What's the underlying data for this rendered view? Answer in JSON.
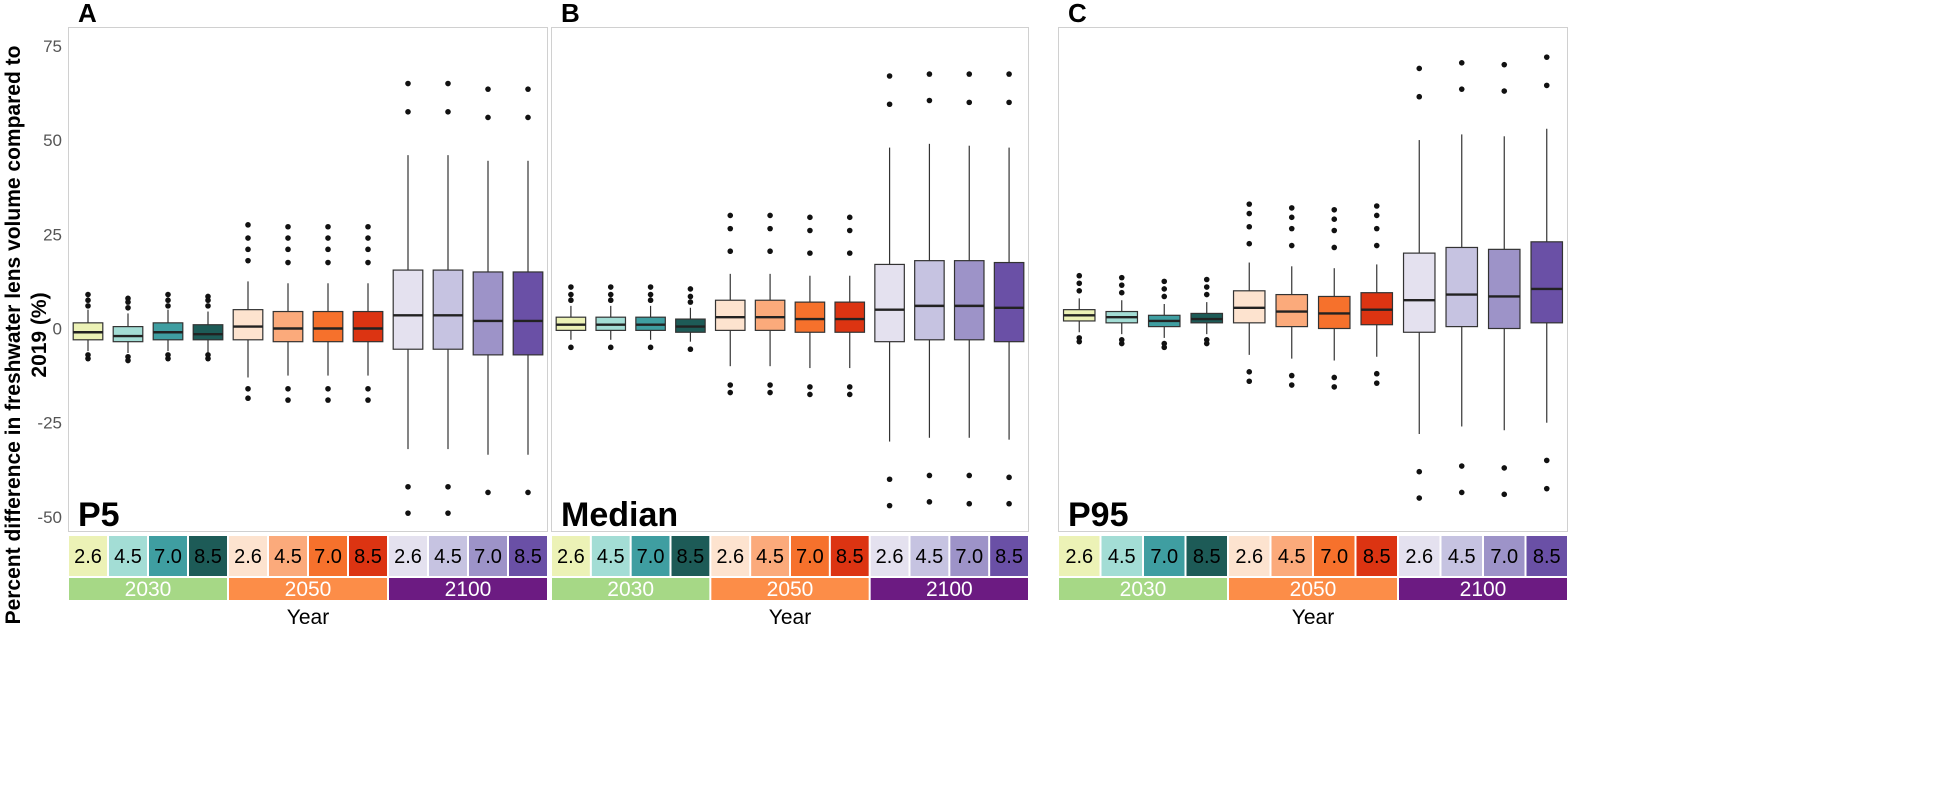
{
  "chart_data": {
    "type": "boxplot",
    "ylabel_lines": [
      "Percent difference in freshwater lens volume compared to",
      "2019 (%)"
    ],
    "xlabel": "Year",
    "ylim": [
      -54,
      80
    ],
    "yticks": [
      75,
      50,
      25,
      0,
      -25,
      -50
    ],
    "ytick_labels": [
      "75",
      "50",
      "25",
      "0",
      "-25",
      "-50"
    ],
    "scenarios": [
      "2.6",
      "4.5",
      "7.0",
      "8.5"
    ],
    "years": [
      "2030",
      "2050",
      "2100"
    ],
    "colors": {
      "2030": [
        "#ecf2b6",
        "#a3ddd5",
        "#3f9ea1",
        "#1d5b57"
      ],
      "2050": [
        "#fde3cf",
        "#fbaa7b",
        "#f6712c",
        "#dc3412"
      ],
      "2100": [
        "#e4e1ef",
        "#c6c3e1",
        "#9d93c8",
        "#6a50a6"
      ],
      "year_strip": {
        "2030": "#a6d886",
        "2050": "#fc8d48",
        "2100": "#6c1b82"
      }
    },
    "panels": [
      {
        "letter": "A",
        "label": "P5",
        "groups": [
          {
            "year": "2030",
            "boxes": [
              {
                "scenario": "2.6",
                "lw": -6,
                "q1": -3,
                "med": -1,
                "q3": 1.5,
                "uw": 5,
                "out": [
                  6,
                  7.5,
                  9,
                  -7,
                  -8
                ]
              },
              {
                "scenario": "4.5",
                "lw": -6.5,
                "q1": -3.5,
                "med": -2,
                "q3": 0.5,
                "uw": 4,
                "out": [
                  5.5,
                  7,
                  8,
                  -7.5,
                  -8.5
                ]
              },
              {
                "scenario": "7.0",
                "lw": -6,
                "q1": -3,
                "med": -1,
                "q3": 1.5,
                "uw": 5,
                "out": [
                  6,
                  7.5,
                  9,
                  -7,
                  -8
                ]
              },
              {
                "scenario": "8.5",
                "lw": -6.5,
                "q1": -3,
                "med": -1.5,
                "q3": 1,
                "uw": 4.5,
                "out": [
                  6,
                  7.5,
                  8.5,
                  -7,
                  -8
                ]
              }
            ]
          },
          {
            "year": "2050",
            "boxes": [
              {
                "scenario": "2.6",
                "lw": -13,
                "q1": -3,
                "med": 0.5,
                "q3": 5,
                "uw": 12.5,
                "out": [
                  18,
                  21,
                  24,
                  27.5,
                  -16,
                  -18.5
                ]
              },
              {
                "scenario": "4.5",
                "lw": -12.5,
                "q1": -3.5,
                "med": 0,
                "q3": 4.5,
                "uw": 12,
                "out": [
                  17.5,
                  21,
                  24,
                  27,
                  -16,
                  -19
                ]
              },
              {
                "scenario": "7.0",
                "lw": -12.5,
                "q1": -3.5,
                "med": 0,
                "q3": 4.5,
                "uw": 12,
                "out": [
                  17.5,
                  21,
                  24,
                  27,
                  -16,
                  -19
                ]
              },
              {
                "scenario": "8.5",
                "lw": -12.5,
                "q1": -3.5,
                "med": 0,
                "q3": 4.5,
                "uw": 12,
                "out": [
                  17.5,
                  21,
                  24,
                  27,
                  -16,
                  -19
                ]
              }
            ]
          },
          {
            "year": "2100",
            "boxes": [
              {
                "scenario": "2.6",
                "lw": -32,
                "q1": -5.5,
                "med": 3.5,
                "q3": 15.5,
                "uw": 46,
                "out": [
                  57.5,
                  65,
                  -42,
                  -49
                ]
              },
              {
                "scenario": "4.5",
                "lw": -32,
                "q1": -5.5,
                "med": 3.5,
                "q3": 15.5,
                "uw": 46,
                "out": [
                  57.5,
                  65,
                  -42,
                  -49
                ]
              },
              {
                "scenario": "7.0",
                "lw": -33.5,
                "q1": -7,
                "med": 2,
                "q3": 15,
                "uw": 44.5,
                "out": [
                  56,
                  63.5,
                  -43.5
                ]
              },
              {
                "scenario": "8.5",
                "lw": -33.5,
                "q1": -7,
                "med": 2,
                "q3": 15,
                "uw": 44.5,
                "out": [
                  56,
                  63.5,
                  -43.5
                ]
              }
            ]
          }
        ]
      },
      {
        "letter": "B",
        "label": "Median",
        "groups": [
          {
            "year": "2030",
            "boxes": [
              {
                "scenario": "2.6",
                "lw": -3,
                "q1": -0.5,
                "med": 1,
                "q3": 3,
                "uw": 6,
                "out": [
                  7.5,
                  9,
                  11,
                  -5
                ]
              },
              {
                "scenario": "4.5",
                "lw": -3,
                "q1": -0.5,
                "med": 1,
                "q3": 3,
                "uw": 6,
                "out": [
                  7.5,
                  9,
                  11,
                  -5
                ]
              },
              {
                "scenario": "7.0",
                "lw": -3,
                "q1": -0.5,
                "med": 1,
                "q3": 3,
                "uw": 6,
                "out": [
                  7.5,
                  9,
                  11,
                  -5
                ]
              },
              {
                "scenario": "8.5",
                "lw": -3.5,
                "q1": -1,
                "med": 0.5,
                "q3": 2.5,
                "uw": 5.5,
                "out": [
                  7,
                  8.5,
                  10.5,
                  -5.5
                ]
              }
            ]
          },
          {
            "year": "2050",
            "boxes": [
              {
                "scenario": "2.6",
                "lw": -10,
                "q1": -0.5,
                "med": 3,
                "q3": 7.5,
                "uw": 14.5,
                "out": [
                  20.5,
                  26.5,
                  30,
                  -15,
                  -17
                ]
              },
              {
                "scenario": "4.5",
                "lw": -10,
                "q1": -0.5,
                "med": 3,
                "q3": 7.5,
                "uw": 14.5,
                "out": [
                  20.5,
                  26.5,
                  30,
                  -15,
                  -17
                ]
              },
              {
                "scenario": "7.0",
                "lw": -10.5,
                "q1": -1,
                "med": 2.5,
                "q3": 7,
                "uw": 14,
                "out": [
                  20,
                  26,
                  29.5,
                  -15.5,
                  -17.5
                ]
              },
              {
                "scenario": "8.5",
                "lw": -10.5,
                "q1": -1,
                "med": 2.5,
                "q3": 7,
                "uw": 14,
                "out": [
                  20,
                  26,
                  29.5,
                  -15.5,
                  -17.5
                ]
              }
            ]
          },
          {
            "year": "2100",
            "boxes": [
              {
                "scenario": "2.6",
                "lw": -30,
                "q1": -3.5,
                "med": 5,
                "q3": 17,
                "uw": 48,
                "out": [
                  59.5,
                  67,
                  -40,
                  -47
                ]
              },
              {
                "scenario": "4.5",
                "lw": -29,
                "q1": -3,
                "med": 6,
                "q3": 18,
                "uw": 49,
                "out": [
                  60.5,
                  67.5,
                  -39,
                  -46
                ]
              },
              {
                "scenario": "7.0",
                "lw": -29,
                "q1": -3,
                "med": 6,
                "q3": 18,
                "uw": 48.5,
                "out": [
                  60,
                  67.5,
                  -39,
                  -46.5
                ]
              },
              {
                "scenario": "8.5",
                "lw": -29.5,
                "q1": -3.5,
                "med": 5.5,
                "q3": 17.5,
                "uw": 48,
                "out": [
                  60,
                  67.5,
                  -39.5,
                  -46.5
                ]
              }
            ]
          }
        ]
      },
      {
        "letter": "C",
        "label": "P95",
        "groups": [
          {
            "year": "2030",
            "boxes": [
              {
                "scenario": "2.6",
                "lw": -1,
                "q1": 2,
                "med": 3.5,
                "q3": 5,
                "uw": 8,
                "out": [
                  10,
                  12,
                  14,
                  -2.5,
                  -3.5
                ]
              },
              {
                "scenario": "4.5",
                "lw": -1.5,
                "q1": 1.5,
                "med": 3,
                "q3": 4.5,
                "uw": 7.5,
                "out": [
                  9.5,
                  11.5,
                  13.5,
                  -3,
                  -4
                ]
              },
              {
                "scenario": "7.0",
                "lw": -2.5,
                "q1": 0.5,
                "med": 2,
                "q3": 3.5,
                "uw": 6.5,
                "out": [
                  8.5,
                  10.5,
                  12.5,
                  -4,
                  -5
                ]
              },
              {
                "scenario": "8.5",
                "lw": -1.5,
                "q1": 1.5,
                "med": 2.5,
                "q3": 4,
                "uw": 7,
                "out": [
                  9,
                  11,
                  13,
                  -3,
                  -4
                ]
              }
            ]
          },
          {
            "year": "2050",
            "boxes": [
              {
                "scenario": "2.6",
                "lw": -7,
                "q1": 1.5,
                "med": 5.5,
                "q3": 10,
                "uw": 17.5,
                "out": [
                  22.5,
                  27,
                  30.5,
                  33,
                  -11.5,
                  -14
                ]
              },
              {
                "scenario": "4.5",
                "lw": -8,
                "q1": 0.5,
                "med": 4.5,
                "q3": 9,
                "uw": 16.5,
                "out": [
                  22,
                  26.5,
                  29.5,
                  32,
                  -12.5,
                  -15
                ]
              },
              {
                "scenario": "7.0",
                "lw": -8.5,
                "q1": 0,
                "med": 4,
                "q3": 8.5,
                "uw": 16,
                "out": [
                  21.5,
                  26,
                  29,
                  31.5,
                  -13,
                  -15.5
                ]
              },
              {
                "scenario": "8.5",
                "lw": -7.5,
                "q1": 1,
                "med": 5,
                "q3": 9.5,
                "uw": 17,
                "out": [
                  22,
                  26.5,
                  30,
                  32.5,
                  -12,
                  -14.5
                ]
              }
            ]
          },
          {
            "year": "2100",
            "boxes": [
              {
                "scenario": "2.6",
                "lw": -28,
                "q1": -1,
                "med": 7.5,
                "q3": 20,
                "uw": 50,
                "out": [
                  61.5,
                  69,
                  -38,
                  -45
                ]
              },
              {
                "scenario": "4.5",
                "lw": -26,
                "q1": 0.5,
                "med": 9,
                "q3": 21.5,
                "uw": 51.5,
                "out": [
                  63.5,
                  70.5,
                  -36.5,
                  -43.5
                ]
              },
              {
                "scenario": "7.0",
                "lw": -27,
                "q1": 0,
                "med": 8.5,
                "q3": 21,
                "uw": 51,
                "out": [
                  63,
                  70,
                  -37,
                  -44
                ]
              },
              {
                "scenario": "8.5",
                "lw": -25,
                "q1": 1.5,
                "med": 10.5,
                "q3": 23,
                "uw": 53,
                "out": [
                  64.5,
                  72,
                  -35,
                  -42.5
                ]
              }
            ]
          }
        ]
      }
    ]
  }
}
